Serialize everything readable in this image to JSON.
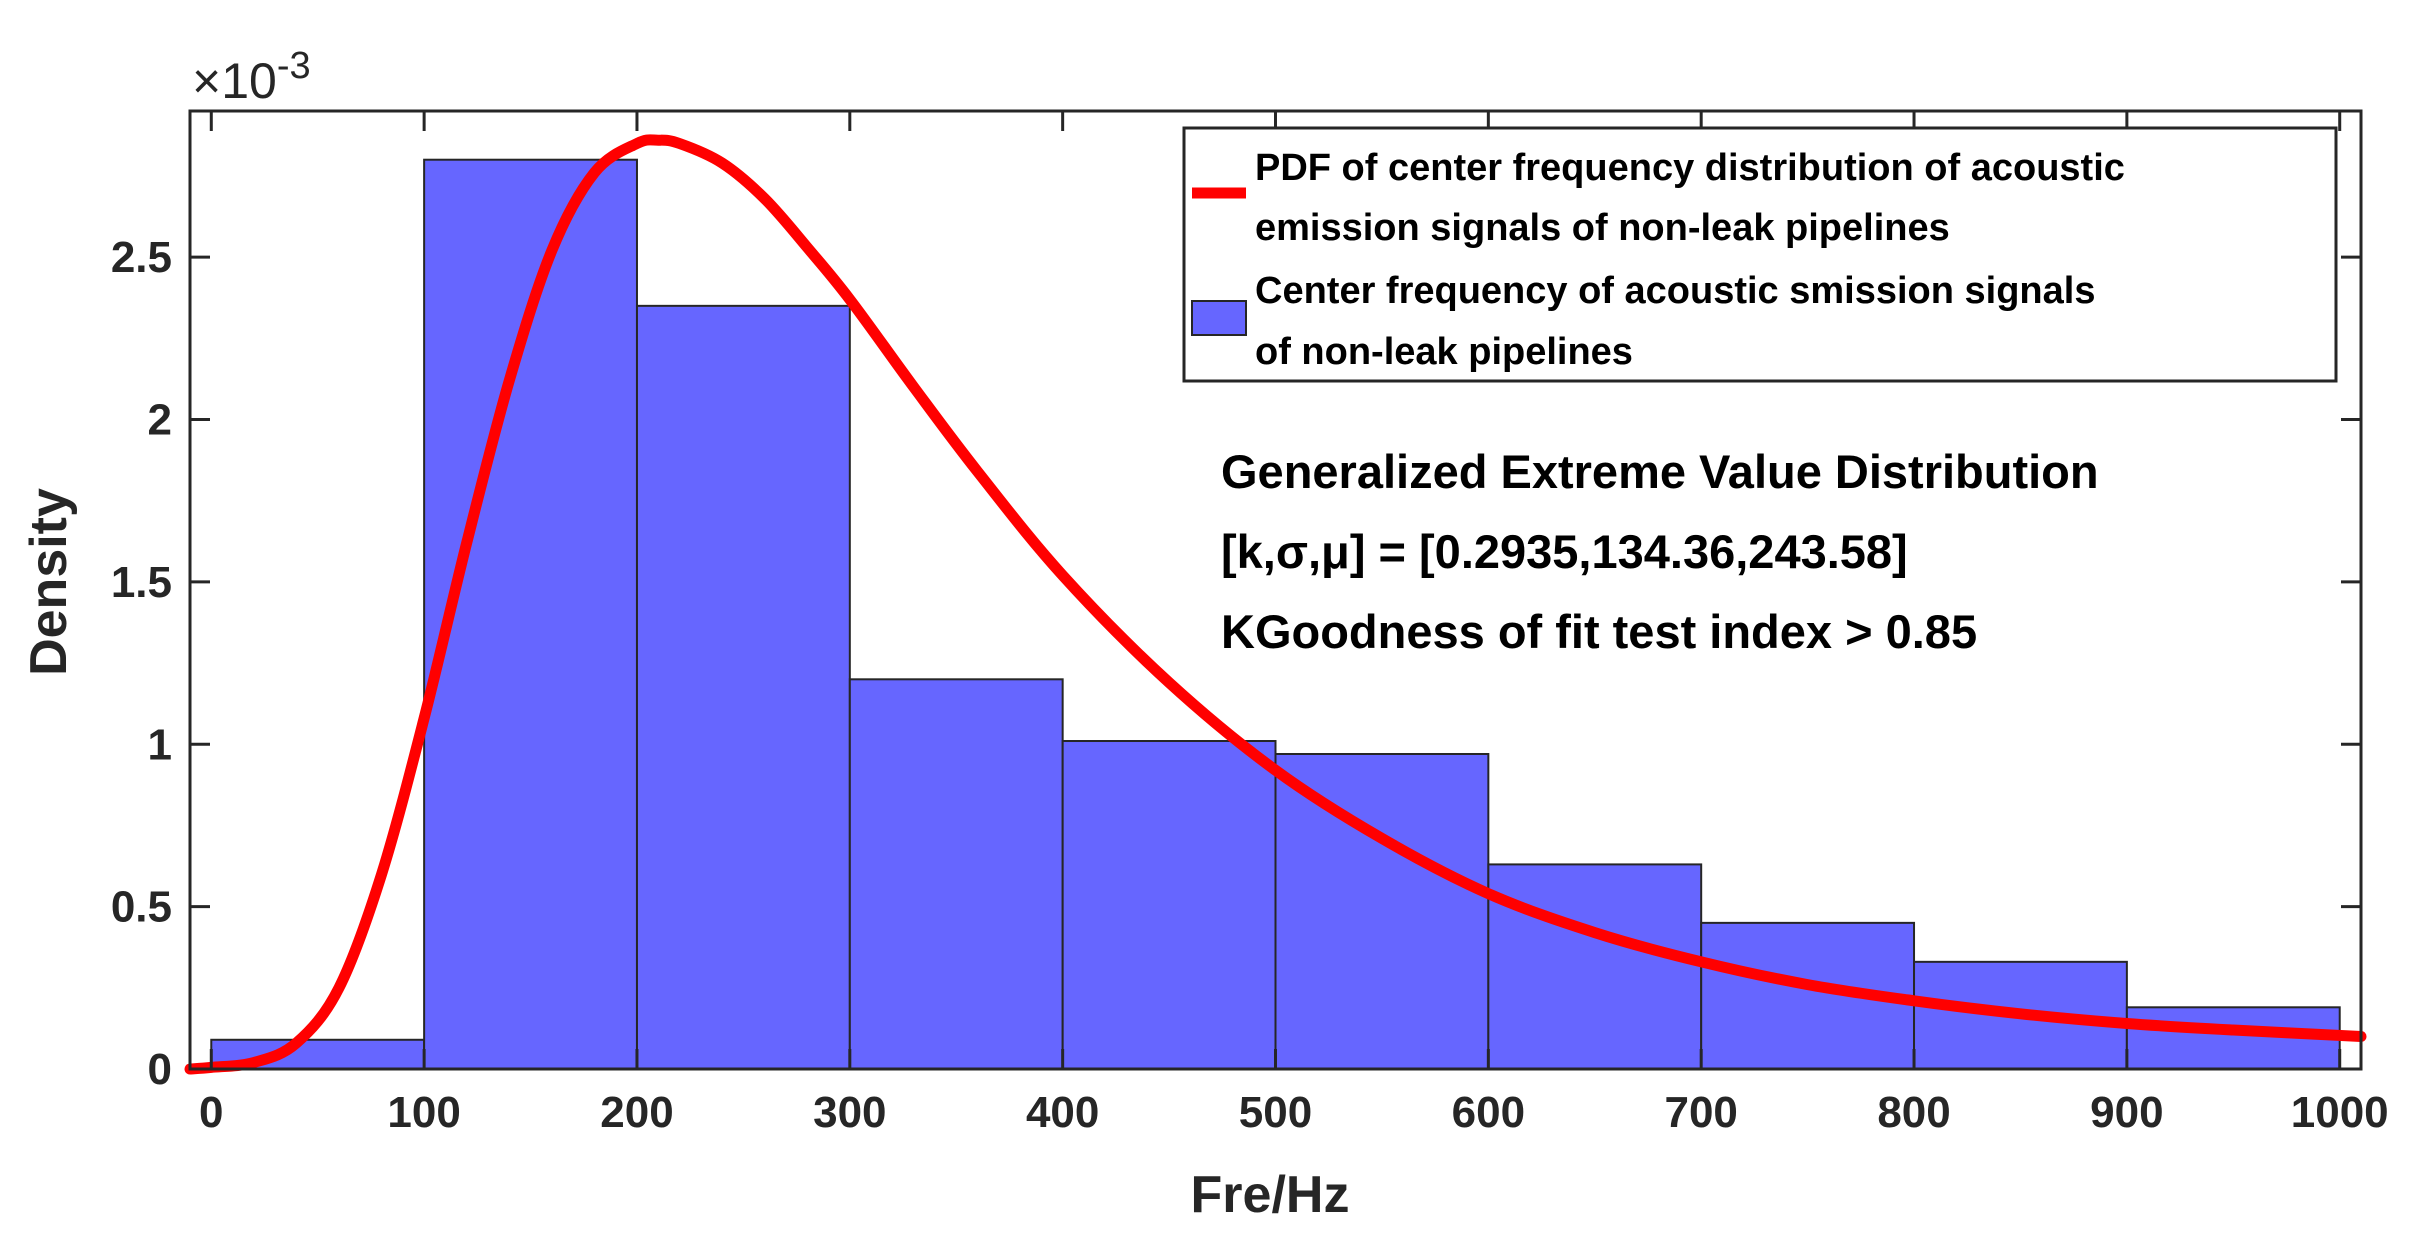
{
  "chart_data": {
    "type": "bar",
    "title": "",
    "xlabel": "Fre/Hz",
    "ylabel": "Density",
    "y_exponent": {
      "base": "×10",
      "power": "-3"
    },
    "xlim": [
      -10,
      1010
    ],
    "ylim": [
      0,
      2.95
    ],
    "x_ticks": [
      "0",
      "100",
      "200",
      "300",
      "400",
      "500",
      "600",
      "700",
      "800",
      "900",
      "1000"
    ],
    "x_tick_values": [
      0,
      100,
      200,
      300,
      400,
      500,
      600,
      700,
      800,
      900,
      1000
    ],
    "y_ticks": [
      "0",
      "0.5",
      "1",
      "1.5",
      "2",
      "2.5"
    ],
    "y_tick_values": [
      0,
      0.5,
      1,
      1.5,
      2,
      2.5
    ],
    "bin_edges": [
      0,
      100,
      200,
      300,
      400,
      500,
      600,
      700,
      800,
      900,
      1000
    ],
    "series": [
      {
        "name": "Center frequency of acoustic smission signals of non-leak pipelines",
        "kind": "histogram",
        "values": [
          0.09,
          2.8,
          2.35,
          1.2,
          1.01,
          0.97,
          0.63,
          0.45,
          0.33,
          0.19
        ],
        "color": "#6666ff"
      },
      {
        "name": "PDF of center frequency distribution of acoustic emission signals of non-leak pipelines",
        "kind": "line",
        "x": [
          -10,
          0,
          20,
          40,
          60,
          80,
          100,
          120,
          140,
          160,
          180,
          200,
          210,
          220,
          240,
          260,
          280,
          300,
          330,
          360,
          400,
          450,
          500,
          550,
          600,
          650,
          700,
          750,
          800,
          850,
          900,
          950,
          1010
        ],
        "values": [
          0.0,
          0.005,
          0.02,
          0.08,
          0.25,
          0.6,
          1.08,
          1.62,
          2.12,
          2.52,
          2.76,
          2.85,
          2.86,
          2.85,
          2.79,
          2.68,
          2.53,
          2.37,
          2.1,
          1.84,
          1.52,
          1.19,
          0.92,
          0.71,
          0.54,
          0.42,
          0.33,
          0.26,
          0.21,
          0.17,
          0.14,
          0.12,
          0.1
        ],
        "color": "#ff0000"
      }
    ],
    "legend": {
      "location": "top-right",
      "entries": [
        {
          "lines": [
            "PDF of center frequency distribution of acoustic",
            "emission signals of non-leak pipelines"
          ],
          "symbol": "line",
          "color": "#ff0000"
        },
        {
          "lines": [
            "Center frequency of acoustic smission signals",
            "of non-leak pipelines"
          ],
          "symbol": "patch",
          "color": "#6666ff"
        }
      ]
    },
    "annotations": [
      "Generalized Extreme Value Distribution",
      "[k,σ,μ] = [0.2935,134.36,243.58]",
      "KGoodness of fit test index > 0.85"
    ]
  }
}
